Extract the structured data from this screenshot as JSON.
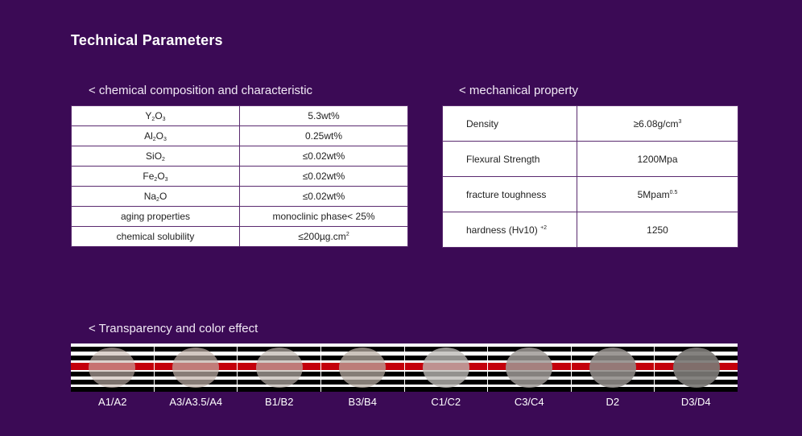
{
  "page_title": "Technical Parameters",
  "chemical": {
    "heading": "< chemical composition and characteristic",
    "rows": [
      {
        "elem": "Y",
        "s1": "2",
        "elem2": "O",
        "s2": "3",
        "value": "5.3wt%"
      },
      {
        "elem": "Al",
        "s1": "2",
        "elem2": "O",
        "s2": "3",
        "value": "0.25wt%"
      },
      {
        "elem": "SiO",
        "s1": "2",
        "elem2": "",
        "s2": "",
        "value": "≤0.02wt%"
      },
      {
        "elem": "Fe",
        "s1": "2",
        "elem2": "O",
        "s2": "3",
        "value": "≤0.02wt%"
      },
      {
        "elem": "Na",
        "s1": "2",
        "elem2": "O",
        "s2": "",
        "value": "≤0.02wt%"
      }
    ],
    "aging_label": "aging  properties",
    "aging_value": "monoclinic phase< 25%",
    "solubility_label": "chemical solubility",
    "solubility_value": "≤200µg.cm",
    "solubility_sup": "2"
  },
  "mechanical": {
    "heading": "< mechanical property",
    "density_label": "Density",
    "density_value": "≥6.08g/cm",
    "density_sup": "3",
    "flexural_label": "Flexural Strength",
    "flexural_value": "1200Mpa",
    "toughness_label": "fracture toughness",
    "toughness_value": "5Mpam",
    "toughness_sup": "0.5",
    "hardness_label": "hardness (Hv10)",
    "hardness_sup": "+2",
    "hardness_value": "1250"
  },
  "transparency": {
    "heading": "< Transparency and color effect",
    "swatches": [
      {
        "label": "A1/A2",
        "color": "#c8b8b0",
        "alpha": 0.62
      },
      {
        "label": "A3/A3.5/A4",
        "color": "#c0b0a8",
        "alpha": 0.7
      },
      {
        "label": "B1/B2",
        "color": "#bcb4ac",
        "alpha": 0.68
      },
      {
        "label": "B3/B4",
        "color": "#b8ada4",
        "alpha": 0.72
      },
      {
        "label": "C1/C2",
        "color": "#bdbab6",
        "alpha": 0.78
      },
      {
        "label": "C3/C4",
        "color": "#9e9a96",
        "alpha": 0.84
      },
      {
        "label": "D2",
        "color": "#8e8a86",
        "alpha": 0.88
      },
      {
        "label": "D3/D4",
        "color": "#7a7774",
        "alpha": 0.92
      }
    ]
  }
}
